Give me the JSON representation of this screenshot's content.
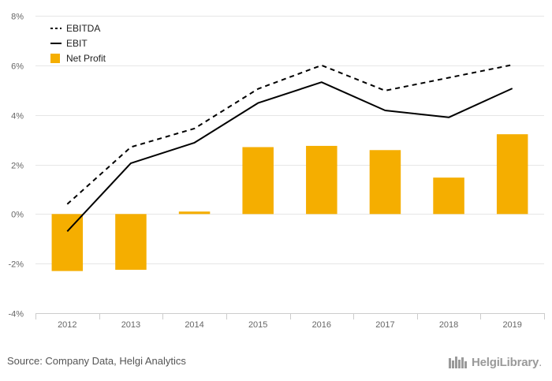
{
  "chart_data": {
    "type": "bar",
    "title": "",
    "xlabel": "",
    "ylabel": "",
    "categories": [
      "2012",
      "2013",
      "2014",
      "2015",
      "2016",
      "2017",
      "2018",
      "2019"
    ],
    "ylim": [
      -4,
      8
    ],
    "yticks": [
      -4,
      -2,
      0,
      2,
      4,
      6,
      8
    ],
    "ytick_labels": [
      "-4%",
      "-2%",
      "0%",
      "2%",
      "4%",
      "6%",
      "8%"
    ],
    "grid": true,
    "legend_position": "top-left",
    "series": [
      {
        "name": "EBITDA",
        "type": "line",
        "style": "dashed",
        "color": "#000000",
        "values": [
          0.4,
          2.7,
          3.45,
          5.05,
          6.0,
          4.98,
          5.5,
          6.02
        ]
      },
      {
        "name": "EBIT",
        "type": "line",
        "style": "solid",
        "color": "#000000",
        "values": [
          -0.7,
          2.05,
          2.88,
          4.48,
          5.32,
          4.18,
          3.9,
          5.07
        ]
      },
      {
        "name": "Net Profit",
        "type": "bar",
        "color": "#F5AE00",
        "values": [
          -2.3,
          -2.25,
          0.1,
          2.7,
          2.75,
          2.58,
          1.47,
          3.22
        ]
      }
    ]
  },
  "footer": {
    "source": "Source: Company Data, Helgi Analytics",
    "brand": "HelgiLibrary",
    "brand_suffix": "."
  }
}
